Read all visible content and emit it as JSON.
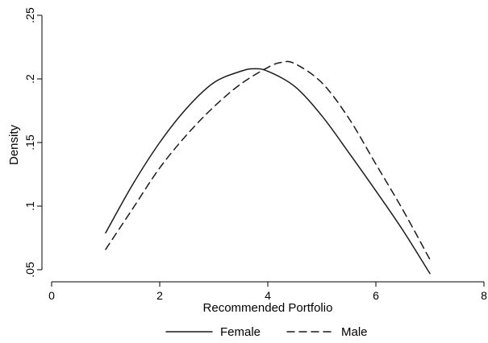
{
  "chart_data": {
    "type": "line",
    "xlabel": "Recommended Portfolio",
    "ylabel": "Density",
    "xlim": [
      0,
      8
    ],
    "ylim": [
      0.05,
      0.25
    ],
    "x_ticks": [
      0,
      2,
      4,
      6,
      8
    ],
    "x_tick_labels": [
      "0",
      "2",
      "4",
      "6",
      "8"
    ],
    "y_ticks": [
      0.05,
      0.1,
      0.15,
      0.2,
      0.25
    ],
    "y_tick_labels": [
      ".05",
      ".1",
      ".15",
      ".2",
      ".25"
    ],
    "grid": false,
    "legend_position": "bottom",
    "series": [
      {
        "name": "Female",
        "style": "solid",
        "x": [
          1.0,
          1.5,
          2.0,
          2.5,
          3.0,
          3.5,
          3.75,
          4.0,
          4.5,
          5.0,
          5.5,
          6.0,
          6.5,
          7.0
        ],
        "y": [
          0.079,
          0.117,
          0.15,
          0.177,
          0.197,
          0.206,
          0.208,
          0.206,
          0.194,
          0.171,
          0.142,
          0.112,
          0.081,
          0.047
        ]
      },
      {
        "name": "Male",
        "style": "dashed",
        "x": [
          1.0,
          1.5,
          2.0,
          2.5,
          3.0,
          3.5,
          4.0,
          4.25,
          4.5,
          5.0,
          5.5,
          6.0,
          6.5,
          7.0
        ],
        "y": [
          0.066,
          0.098,
          0.13,
          0.156,
          0.178,
          0.196,
          0.209,
          0.213,
          0.212,
          0.197,
          0.169,
          0.133,
          0.097,
          0.058
        ]
      }
    ]
  }
}
